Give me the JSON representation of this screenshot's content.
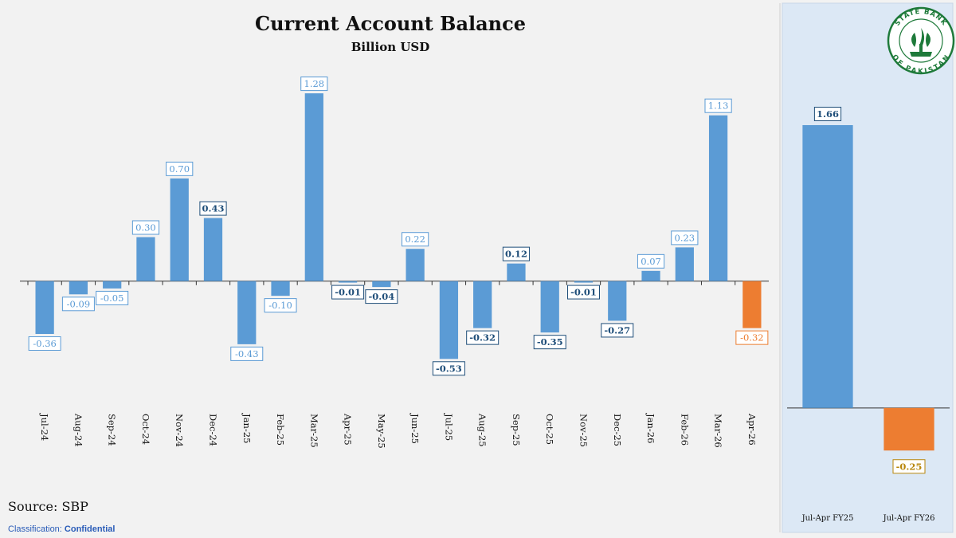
{
  "colors": {
    "bar_main": "#5b9bd5",
    "bar_highlight": "#ed7d31",
    "label_dark": "#1f4e79",
    "label_light": "#5b9bd5",
    "label_orange": "#ed7d31",
    "label_gold": "#b8860b",
    "side_panel_bg": "#dce8f5",
    "logo_green": "#1e7a3a"
  },
  "source_text": "Source: SBP",
  "classification": {
    "label": "Classification: ",
    "value": "Confidential"
  },
  "logo": {
    "text_top": "STATE BANK",
    "text_bottom": "OF PAKISTAN",
    "icon": "sbp-logo-icon"
  },
  "chart_data": [
    {
      "type": "bar",
      "title": "Current Account Balance",
      "subtitle": "Billion USD",
      "categories": [
        "Jul-24",
        "Aug-24",
        "Sep-24",
        "Oct-24",
        "Nov-24",
        "Dec-24",
        "Jan-25",
        "Feb-25",
        "Mar-25",
        "Apr-25",
        "May-25",
        "Jun-25",
        "Jul-25",
        "Aug-25",
        "Sep-25",
        "Oct-25",
        "Nov-25",
        "Dec-25",
        "Jan-26",
        "Feb-26",
        "Mar-26",
        "Apr-26"
      ],
      "values": [
        -0.36,
        -0.09,
        -0.05,
        0.3,
        0.7,
        0.43,
        -0.43,
        -0.1,
        1.28,
        -0.01,
        -0.04,
        0.22,
        -0.53,
        -0.32,
        0.12,
        -0.35,
        -0.01,
        -0.27,
        0.07,
        0.23,
        1.13,
        -0.32
      ],
      "data_labels": [
        "-0.36",
        "-0.09",
        "-0.05",
        "0.30",
        "0.70",
        "0.43",
        "-0.43",
        "-0.10",
        "1.28",
        "-0.01",
        "-0.04",
        "0.22",
        "-0.53",
        "-0.32",
        "0.12",
        "-0.35",
        "-0.01",
        "-0.27",
        "0.07",
        "0.23",
        "1.13",
        "-0.32"
      ],
      "label_style": [
        "light",
        "light",
        "light",
        "light",
        "light",
        "dark",
        "light",
        "light",
        "light",
        "dark",
        "dark",
        "light",
        "dark",
        "dark",
        "dark",
        "dark",
        "dark",
        "dark",
        "light",
        "light",
        "light",
        "orange"
      ],
      "highlight_index": 21,
      "ylim": [
        -0.8,
        1.4
      ],
      "grid": false,
      "legend": "none"
    },
    {
      "type": "bar",
      "categories": [
        "Jul-Apr FY25",
        "Jul-Apr FY26"
      ],
      "values": [
        1.66,
        -0.25
      ],
      "data_labels": [
        "1.66",
        "-0.25"
      ],
      "label_style": [
        "dark",
        "gold"
      ],
      "colors": [
        "#5b9bd5",
        "#ed7d31"
      ],
      "ylim": [
        -0.45,
        1.95
      ],
      "grid": false,
      "legend": "none"
    }
  ]
}
